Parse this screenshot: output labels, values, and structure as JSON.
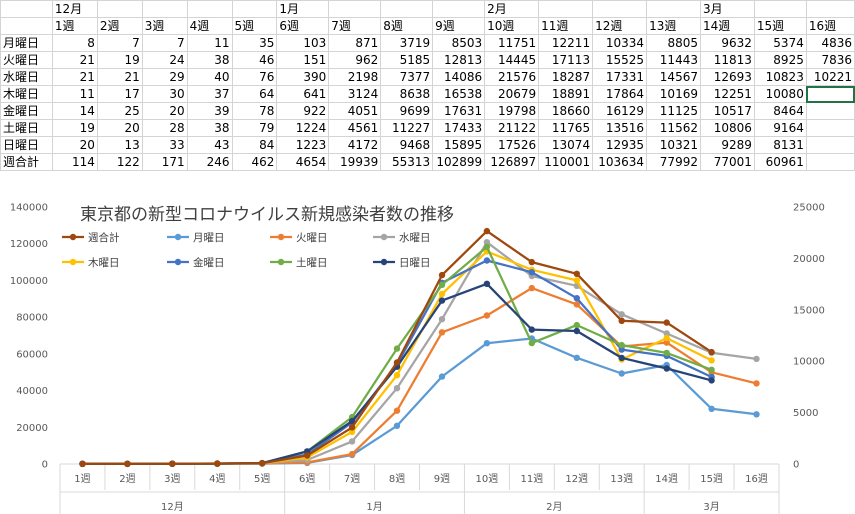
{
  "spreadsheet": {
    "month_row": [
      "",
      "12月",
      "",
      "",
      "",
      "",
      "1月",
      "",
      "",
      "",
      "2月",
      "",
      "",
      "",
      "3月",
      "",
      ""
    ],
    "week_row": [
      "",
      "1週",
      "2週",
      "3週",
      "4週",
      "5週",
      "6週",
      "7週",
      "8週",
      "9週",
      "10週",
      "11週",
      "12週",
      "13週",
      "14週",
      "15週",
      "16週"
    ],
    "rows": [
      {
        "label": "月曜日",
        "cells": [
          "8",
          "7",
          "7",
          "11",
          "35",
          "103",
          "871",
          "3719",
          "8503",
          "11751",
          "12211",
          "10334",
          "8805",
          "9632",
          "5374",
          "4836"
        ]
      },
      {
        "label": "火曜日",
        "cells": [
          "21",
          "19",
          "24",
          "38",
          "46",
          "151",
          "962",
          "5185",
          "12813",
          "14445",
          "17113",
          "15525",
          "11443",
          "11813",
          "8925",
          "7836"
        ]
      },
      {
        "label": "水曜日",
        "cells": [
          "21",
          "21",
          "29",
          "40",
          "76",
          "390",
          "2198",
          "7377",
          "14086",
          "21576",
          "18287",
          "17331",
          "14567",
          "12693",
          "10823",
          "10221"
        ]
      },
      {
        "label": "木曜日",
        "cells": [
          "11",
          "17",
          "30",
          "37",
          "64",
          "641",
          "3124",
          "8638",
          "16538",
          "20679",
          "18891",
          "17864",
          "10169",
          "12251",
          "10080",
          ""
        ]
      },
      {
        "label": "金曜日",
        "cells": [
          "14",
          "25",
          "20",
          "39",
          "78",
          "922",
          "4051",
          "9699",
          "17631",
          "19798",
          "18660",
          "16129",
          "11125",
          "10517",
          "8464",
          ""
        ]
      },
      {
        "label": "土曜日",
        "cells": [
          "19",
          "20",
          "28",
          "38",
          "79",
          "1224",
          "4561",
          "11227",
          "17433",
          "21122",
          "11765",
          "13516",
          "11562",
          "10806",
          "9164",
          ""
        ]
      },
      {
        "label": "日曜日",
        "cells": [
          "20",
          "13",
          "33",
          "43",
          "84",
          "1223",
          "4172",
          "9468",
          "15895",
          "17526",
          "13074",
          "12935",
          "10321",
          "9289",
          "8131",
          ""
        ]
      },
      {
        "label": "週合計",
        "cells": [
          "114",
          "122",
          "171",
          "246",
          "462",
          "4654",
          "19939",
          "55313",
          "102899",
          "126897",
          "110001",
          "103634",
          "77992",
          "77001",
          "60961",
          ""
        ]
      }
    ]
  },
  "chart_data": {
    "type": "line",
    "title": "東京都の新型コロナウイルス新規感染者数の推移",
    "categories": [
      "1週",
      "2週",
      "3週",
      "4週",
      "5週",
      "6週",
      "7週",
      "8週",
      "9週",
      "10週",
      "11週",
      "12週",
      "13週",
      "14週",
      "15週",
      "16週"
    ],
    "months": [
      {
        "label": "12月",
        "span": [
          0,
          4
        ]
      },
      {
        "label": "1月",
        "span": [
          5,
          8
        ]
      },
      {
        "label": "2月",
        "span": [
          9,
          12
        ]
      },
      {
        "label": "3月",
        "span": [
          13,
          15
        ]
      }
    ],
    "primary_axis": {
      "min": 0,
      "max": 140000,
      "step": 20000,
      "ticks": [
        "0",
        "20000",
        "40000",
        "60000",
        "80000",
        "100000",
        "120000",
        "140000"
      ]
    },
    "secondary_axis": {
      "min": 0,
      "max": 25000,
      "step": 5000,
      "ticks": [
        "0",
        "5000",
        "10000",
        "15000",
        "20000",
        "25000"
      ]
    },
    "legend_position": "top-left",
    "grid": false,
    "series": [
      {
        "name": "週合計",
        "axis": "primary",
        "color": "#9e480e",
        "values": [
          114,
          122,
          171,
          246,
          462,
          4654,
          19939,
          55313,
          102899,
          126897,
          110001,
          103634,
          77992,
          77001,
          60961,
          null
        ]
      },
      {
        "name": "月曜日",
        "axis": "secondary",
        "color": "#5b9bd5",
        "values": [
          8,
          7,
          7,
          11,
          35,
          103,
          871,
          3719,
          8503,
          11751,
          12211,
          10334,
          8805,
          9632,
          5374,
          4836
        ]
      },
      {
        "name": "火曜日",
        "axis": "secondary",
        "color": "#ed7d31",
        "values": [
          21,
          19,
          24,
          38,
          46,
          151,
          962,
          5185,
          12813,
          14445,
          17113,
          15525,
          11443,
          11813,
          8925,
          7836
        ]
      },
      {
        "name": "水曜日",
        "axis": "secondary",
        "color": "#a5a5a5",
        "values": [
          21,
          21,
          29,
          40,
          76,
          390,
          2198,
          7377,
          14086,
          21576,
          18287,
          17331,
          14567,
          12693,
          10823,
          10221
        ]
      },
      {
        "name": "木曜日",
        "axis": "secondary",
        "color": "#ffc000",
        "values": [
          11,
          17,
          30,
          37,
          64,
          641,
          3124,
          8638,
          16538,
          20679,
          18891,
          17864,
          10169,
          12251,
          10080,
          null
        ]
      },
      {
        "name": "金曜日",
        "axis": "secondary",
        "color": "#4472c4",
        "values": [
          14,
          25,
          20,
          39,
          78,
          922,
          4051,
          9699,
          17631,
          19798,
          18660,
          16129,
          11125,
          10517,
          8464,
          null
        ]
      },
      {
        "name": "土曜日",
        "axis": "secondary",
        "color": "#70ad47",
        "values": [
          19,
          20,
          28,
          38,
          79,
          1224,
          4561,
          11227,
          17433,
          21122,
          11765,
          13516,
          11562,
          10806,
          9164,
          null
        ]
      },
      {
        "name": "日曜日",
        "axis": "secondary",
        "color": "#264478",
        "values": [
          20,
          13,
          33,
          43,
          84,
          1223,
          4172,
          9468,
          15895,
          17526,
          13074,
          12935,
          10321,
          9289,
          8131,
          null
        ]
      }
    ]
  }
}
